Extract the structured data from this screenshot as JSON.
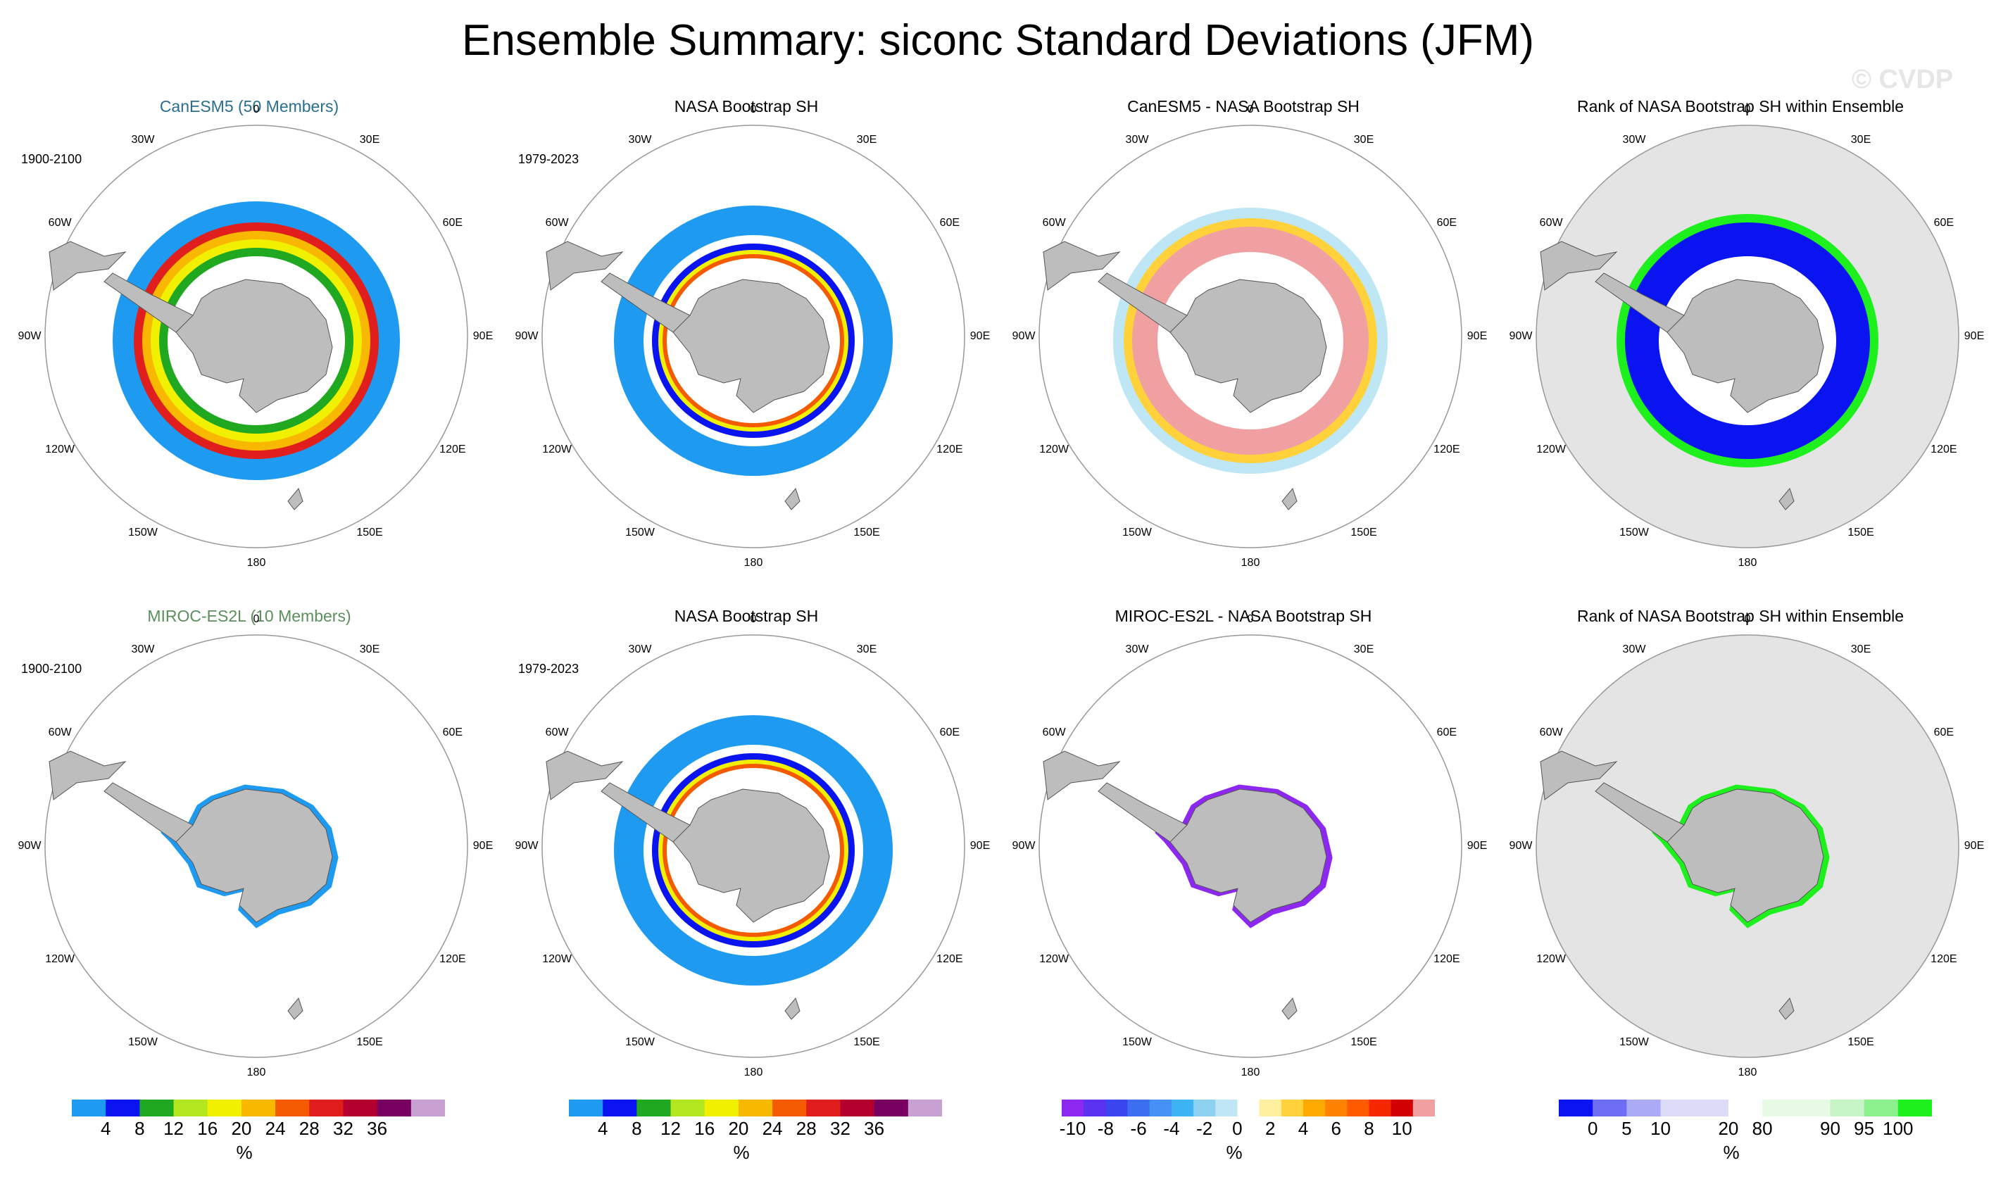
{
  "title": "Ensemble Summary: siconc Standard Deviations (JFM)",
  "watermark": "© CVDP",
  "lon_labels": [
    "0",
    "30E",
    "60E",
    "90E",
    "120E",
    "150E",
    "180",
    "150W",
    "120W",
    "90W",
    "60W",
    "30W"
  ],
  "colors": {
    "land": "#bdbdbd",
    "ocean_rank": "#e4e4e4",
    "circle": "#999999",
    "canesm_title": "#2a6e8f",
    "miroc_title": "#5b8f5b"
  },
  "panels": [
    {
      "title": "CanESM5 (50 Members)",
      "years": "1900-2100",
      "kind": "std_model"
    },
    {
      "title": "NASA Bootstrap SH",
      "years": "1979-2023",
      "kind": "std_obs"
    },
    {
      "title": "CanESM5 - NASA Bootstrap SH",
      "years": "",
      "kind": "diff"
    },
    {
      "title": "Rank of NASA Bootstrap SH within Ensemble",
      "years": "",
      "kind": "rank"
    },
    {
      "title": "MIROC-ES2L (10 Members)",
      "years": "1900-2100",
      "kind": "std_model_small"
    },
    {
      "title": "NASA Bootstrap SH",
      "years": "1979-2023",
      "kind": "std_obs"
    },
    {
      "title": "MIROC-ES2L - NASA Bootstrap SH",
      "years": "",
      "kind": "diff_small"
    },
    {
      "title": "Rank of NASA Bootstrap SH within Ensemble",
      "years": "",
      "kind": "rank_small"
    }
  ],
  "colorbars": [
    {
      "unit": "%",
      "colors": [
        "#1e9bf0",
        "#0a14f0",
        "#20a820",
        "#b4e620",
        "#f0f000",
        "#f8b800",
        "#f45a00",
        "#e01e1e",
        "#b4002e",
        "#780060",
        "#c8a0d2"
      ],
      "ticks": [
        "4",
        "8",
        "12",
        "16",
        "20",
        "24",
        "28",
        "32",
        "36"
      ]
    },
    {
      "unit": "%",
      "colors": [
        "#1e9bf0",
        "#0a14f0",
        "#20a820",
        "#b4e620",
        "#f0f000",
        "#f8b800",
        "#f45a00",
        "#e01e1e",
        "#b4002e",
        "#780060",
        "#c8a0d2"
      ],
      "ticks": [
        "4",
        "8",
        "12",
        "16",
        "20",
        "24",
        "28",
        "32",
        "36"
      ]
    },
    {
      "unit": "%",
      "colors": [
        "#8c28f0",
        "#5a32f0",
        "#3c46f0",
        "#3c6ef0",
        "#4691f5",
        "#3cb4f5",
        "#8cd2f0",
        "#bee6f5",
        "#ffffff",
        "#fff0a0",
        "#ffd23c",
        "#ffaa00",
        "#ff8200",
        "#ff5a00",
        "#f52800",
        "#d20000",
        "#f0a0a0"
      ],
      "ticks": [
        "-10",
        "-8",
        "-6",
        "-4",
        "-2",
        "0",
        "2",
        "4",
        "6",
        "8",
        "10"
      ]
    },
    {
      "unit": "%",
      "colors": [
        "#0a14f0",
        "#6e6ef5",
        "#aaaaf5",
        "#dcdcf8",
        "#dcdcf8",
        "#ffffff",
        "#e6fae6",
        "#e6fae6",
        "#c8f5c8",
        "#8cf08c",
        "#1ef01e"
      ],
      "ticks": [
        "0",
        "5",
        "10",
        "20",
        "80",
        "90",
        "95",
        "100"
      ]
    }
  ]
}
